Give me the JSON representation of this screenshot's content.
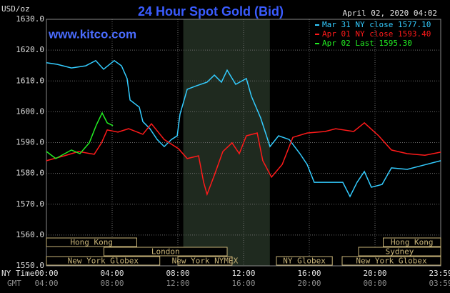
{
  "chart_data": {
    "type": "line",
    "title": "24 Hour Spot Gold (Bid)",
    "site": "www.kitco.com",
    "y_unit": "USD/oz",
    "timestamp": "April 02, 2020 04:02",
    "x_row_labels": [
      "NY Time",
      "GMT"
    ],
    "xlim": [
      0,
      24
    ],
    "ylim": [
      1550,
      1630
    ],
    "yticks": [
      {
        "value": 1550,
        "label": "1550.0"
      },
      {
        "value": 1560,
        "label": "1560.0"
      },
      {
        "value": 1570,
        "label": "1570.0"
      },
      {
        "value": 1580,
        "label": "1580.0"
      },
      {
        "value": 1590,
        "label": "1590.0"
      },
      {
        "value": 1600,
        "label": "1600.0"
      },
      {
        "value": 1610,
        "label": "1610.0"
      },
      {
        "value": 1620,
        "label": "1620.0"
      },
      {
        "value": 1630,
        "label": "1630.0"
      }
    ],
    "xticks": [
      {
        "value": 0,
        "label": "00:00"
      },
      {
        "value": 4,
        "label": "04:00"
      },
      {
        "value": 8,
        "label": "08:00"
      },
      {
        "value": 12,
        "label": "12:00"
      },
      {
        "value": 16,
        "label": "16:00"
      },
      {
        "value": 20,
        "label": "20:00"
      },
      {
        "value": 24,
        "label": "23:59"
      }
    ],
    "x2ticks": [
      {
        "value": 0,
        "label": "04:00"
      },
      {
        "value": 4,
        "label": "08:00"
      },
      {
        "value": 8,
        "label": "12:00"
      },
      {
        "value": 12,
        "label": "16:00"
      },
      {
        "value": 16,
        "label": "20:00"
      },
      {
        "value": 20,
        "label": "00:00"
      },
      {
        "value": 24,
        "label": "03:59"
      }
    ],
    "grid": true,
    "highlight_x": [
      8.33,
      13.6
    ],
    "sessions": [
      {
        "name": "Hong Kong",
        "start": 0,
        "end": 5.5,
        "row": 0
      },
      {
        "name": "Hong Kong",
        "start": 20.5,
        "end": 24,
        "row": 0
      },
      {
        "name": "London",
        "start": 3.5,
        "end": 11,
        "row": 1
      },
      {
        "name": "Sydney",
        "start": 19,
        "end": 24,
        "row": 1
      },
      {
        "name": "New York Globex",
        "start": 0,
        "end": 6.9,
        "row": 2
      },
      {
        "name": "New York NYMEX",
        "start": 8,
        "end": 11.3,
        "row": 2
      },
      {
        "name": "NY Globex",
        "start": 14,
        "end": 17.4,
        "row": 2
      },
      {
        "name": "New York Globex",
        "start": 18,
        "end": 24,
        "row": 2
      }
    ],
    "series": [
      {
        "name": "Mar 31 NY close 1577.10",
        "color": "#33ccff",
        "x": [
          0,
          0.65,
          1.52,
          2.39,
          3,
          3.48,
          4.13,
          4.57,
          4.91,
          5.09,
          5.65,
          5.87,
          6.3,
          6.74,
          7.17,
          7.61,
          7.96,
          8.13,
          8.57,
          9.13,
          9.78,
          10.22,
          10.65,
          11,
          11.52,
          12.17,
          12.48,
          13.04,
          13.61,
          14.13,
          14.78,
          15.43,
          15.87,
          16.3,
          17.17,
          18.04,
          18.48,
          18.91,
          19.35,
          19.78,
          20.43,
          21,
          21.96,
          22.83,
          24
        ],
        "values": [
          1615.9,
          1615.4,
          1614.2,
          1614.9,
          1616.6,
          1613.8,
          1616.6,
          1614.9,
          1610.8,
          1603.8,
          1601.5,
          1596.8,
          1594.5,
          1591,
          1588.7,
          1591,
          1592.2,
          1599.2,
          1607.3,
          1608.4,
          1609.6,
          1611.9,
          1609.6,
          1613.5,
          1608.9,
          1610.8,
          1605,
          1598,
          1588.7,
          1592.2,
          1591,
          1586.4,
          1582.9,
          1577.1,
          1577.1,
          1577.1,
          1572.5,
          1577.1,
          1580.6,
          1575.5,
          1576.4,
          1581.8,
          1581.3,
          1582.5,
          1584.1
        ]
      },
      {
        "name": "Apr 01 NY close 1593.40",
        "color": "#ff1a1a",
        "x": [
          0,
          1.09,
          1.96,
          2.91,
          3.35,
          3.7,
          4.35,
          5,
          5.87,
          6.39,
          7.17,
          8.04,
          8.57,
          9.26,
          9.57,
          9.78,
          10.22,
          10.74,
          11.3,
          11.74,
          12.17,
          12.83,
          13.17,
          13.7,
          14.35,
          15,
          15.87,
          16.96,
          17.61,
          18.7,
          19.35,
          20.22,
          21,
          21.96,
          23.04,
          24
        ],
        "values": [
          1584.1,
          1585.7,
          1587.1,
          1586.2,
          1589.9,
          1594.1,
          1593.4,
          1594.5,
          1592.7,
          1596.1,
          1591,
          1588,
          1584.8,
          1585.7,
          1577.1,
          1573.2,
          1579.4,
          1587.1,
          1589.9,
          1586.4,
          1592.2,
          1593.1,
          1584.1,
          1578.8,
          1582.9,
          1591.7,
          1593.1,
          1593.6,
          1594.5,
          1593.6,
          1596.4,
          1592.2,
          1587.6,
          1586.4,
          1585.9,
          1586.9
        ]
      },
      {
        "name": "Apr 02 Last 1595.30",
        "color": "#22ee22",
        "x": [
          0,
          0.57,
          1.52,
          2.04,
          2.61,
          3.04,
          3.39,
          3.7,
          4.05
        ],
        "values": [
          1587.1,
          1584.8,
          1587.6,
          1586.4,
          1589.9,
          1595.7,
          1599.6,
          1596.4,
          1595.5
        ]
      }
    ]
  }
}
